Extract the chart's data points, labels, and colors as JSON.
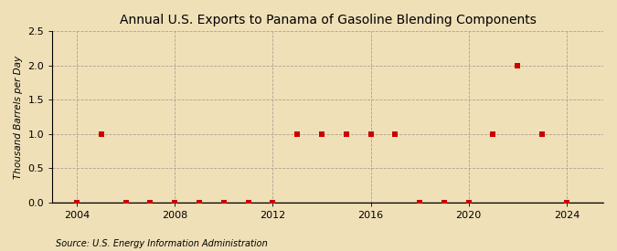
{
  "title": "Annual U.S. Exports to Panama of Gasoline Blending Components",
  "ylabel": "Thousand Barrels per Day",
  "source": "Source: U.S. Energy Information Administration",
  "background_color": "#f0e0b8",
  "plot_bg_color": "#f0e0b8",
  "x_values": [
    2004,
    2005,
    2006,
    2007,
    2008,
    2009,
    2010,
    2011,
    2012,
    2013,
    2014,
    2015,
    2016,
    2017,
    2018,
    2019,
    2020,
    2021,
    2022,
    2023,
    2024
  ],
  "y_values": [
    0.0,
    1.0,
    0.0,
    0.0,
    0.0,
    0.0,
    0.0,
    0.0,
    0.0,
    1.0,
    1.0,
    1.0,
    1.0,
    1.0,
    0.0,
    0.0,
    0.0,
    1.0,
    2.0,
    1.0,
    0.0
  ],
  "marker_color": "#cc0000",
  "marker_size": 4,
  "xlim": [
    2003.0,
    2025.5
  ],
  "ylim": [
    0.0,
    2.5
  ],
  "xticks": [
    2004,
    2008,
    2012,
    2016,
    2020,
    2024
  ],
  "yticks": [
    0.0,
    0.5,
    1.0,
    1.5,
    2.0,
    2.5
  ],
  "grid_color": "#b0a090",
  "title_fontsize": 10,
  "label_fontsize": 7.5,
  "tick_fontsize": 8,
  "source_fontsize": 7
}
